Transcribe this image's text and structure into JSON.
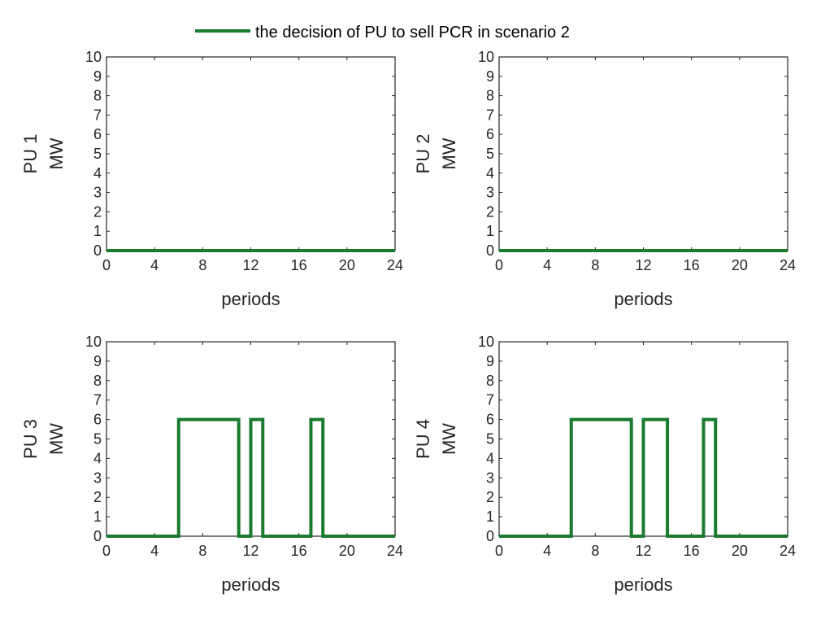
{
  "legend": {
    "label": "the decision of PU to sell PCR in scenario 2",
    "color": "#1a7a2e"
  },
  "chart_data": [
    {
      "type": "line",
      "step": true,
      "ylabel_top": "PU 1",
      "ylabel_bottom": "MW",
      "xlabel": "periods",
      "xlim": [
        0,
        24
      ],
      "ylim": [
        0,
        10
      ],
      "xticks": [
        0,
        4,
        8,
        12,
        16,
        20,
        24
      ],
      "yticks": [
        0,
        1,
        2,
        3,
        4,
        5,
        6,
        7,
        8,
        9,
        10
      ],
      "series": [
        {
          "name": "the decision of PU to sell PCR in scenario 2",
          "x": [
            0,
            24
          ],
          "y": [
            0,
            0
          ]
        }
      ]
    },
    {
      "type": "line",
      "step": true,
      "ylabel_top": "PU 2",
      "ylabel_bottom": "MW",
      "xlabel": "periods",
      "xlim": [
        0,
        24
      ],
      "ylim": [
        0,
        10
      ],
      "xticks": [
        0,
        4,
        8,
        12,
        16,
        20,
        24
      ],
      "yticks": [
        0,
        1,
        2,
        3,
        4,
        5,
        6,
        7,
        8,
        9,
        10
      ],
      "series": [
        {
          "name": "the decision of PU to sell PCR in scenario 2",
          "x": [
            0,
            24
          ],
          "y": [
            0,
            0
          ]
        }
      ]
    },
    {
      "type": "line",
      "step": true,
      "ylabel_top": "PU 3",
      "ylabel_bottom": "MW",
      "xlabel": "periods",
      "xlim": [
        0,
        24
      ],
      "ylim": [
        0,
        10
      ],
      "xticks": [
        0,
        4,
        8,
        12,
        16,
        20,
        24
      ],
      "yticks": [
        0,
        1,
        2,
        3,
        4,
        5,
        6,
        7,
        8,
        9,
        10
      ],
      "series": [
        {
          "name": "the decision of PU to sell PCR in scenario 2",
          "x": [
            0,
            6,
            6,
            11,
            11,
            12,
            12,
            13,
            13,
            17,
            17,
            18,
            18,
            24
          ],
          "y": [
            0,
            0,
            6,
            6,
            0,
            0,
            6,
            6,
            0,
            0,
            6,
            6,
            0,
            0
          ]
        }
      ]
    },
    {
      "type": "line",
      "step": true,
      "ylabel_top": "PU 4",
      "ylabel_bottom": "MW",
      "xlabel": "periods",
      "xlim": [
        0,
        24
      ],
      "ylim": [
        0,
        10
      ],
      "xticks": [
        0,
        4,
        8,
        12,
        16,
        20,
        24
      ],
      "yticks": [
        0,
        1,
        2,
        3,
        4,
        5,
        6,
        7,
        8,
        9,
        10
      ],
      "series": [
        {
          "name": "the decision of PU to sell PCR in scenario 2",
          "x": [
            0,
            6,
            6,
            11,
            11,
            12,
            12,
            14,
            14,
            17,
            17,
            18,
            18,
            24
          ],
          "y": [
            0,
            0,
            6,
            6,
            0,
            0,
            6,
            6,
            0,
            0,
            6,
            6,
            0,
            0
          ]
        }
      ]
    }
  ]
}
